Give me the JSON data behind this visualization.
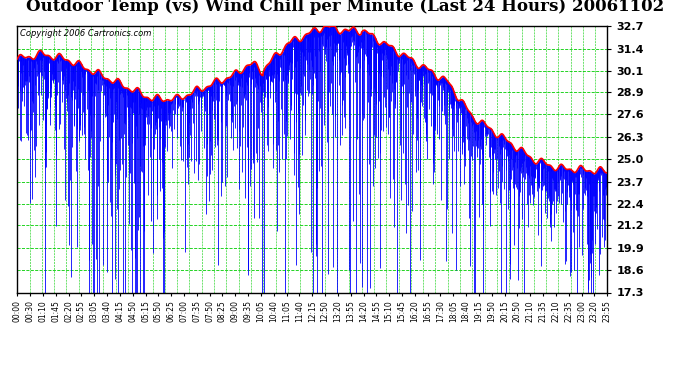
{
  "title": "Outdoor Temp (vs) Wind Chill per Minute (Last 24 Hours) 20061102",
  "copyright_text": "Copyright 2006 Cartronics.com",
  "background_color": "#ffffff",
  "plot_bg_color": "#ffffff",
  "y_min": 17.3,
  "y_max": 32.7,
  "y_ticks": [
    17.3,
    18.6,
    19.9,
    21.2,
    22.4,
    23.7,
    25.0,
    26.3,
    27.6,
    28.9,
    30.1,
    31.4,
    32.7
  ],
  "x_tick_labels": [
    "00:00",
    "00:30",
    "01:10",
    "01:45",
    "02:20",
    "02:55",
    "03:05",
    "03:40",
    "04:15",
    "04:50",
    "05:15",
    "05:50",
    "06:25",
    "07:00",
    "07:35",
    "07:50",
    "08:25",
    "09:00",
    "09:35",
    "10:05",
    "10:40",
    "11:05",
    "11:40",
    "12:15",
    "12:50",
    "13:20",
    "13:55",
    "14:20",
    "14:55",
    "15:10",
    "15:45",
    "16:20",
    "16:55",
    "17:30",
    "18:05",
    "18:40",
    "19:15",
    "19:50",
    "20:15",
    "20:50",
    "21:10",
    "21:35",
    "22:10",
    "22:35",
    "23:00",
    "23:20",
    "23:55"
  ],
  "grid_color": "#00cc00",
  "blue_color": "#0000ff",
  "red_color": "#ff0000",
  "title_fontsize": 12,
  "copyright_fontsize": 6,
  "ytick_fontsize": 8,
  "xtick_fontsize": 5.5,
  "n_points": 1440
}
